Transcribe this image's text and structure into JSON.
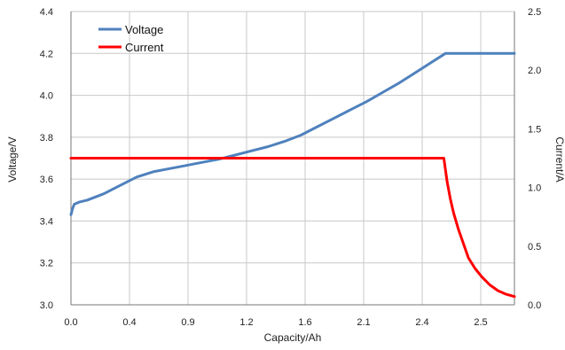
{
  "chart_data": {
    "type": "line",
    "title": "",
    "xlabel": "Capacity/Ah",
    "ylabel": "Voltage/V",
    "y2label": "Current/A",
    "xlim": [
      0.0,
      2.7
    ],
    "ylim": [
      3.0,
      4.4
    ],
    "y2lim": [
      0.0,
      2.5
    ],
    "x_ticks": [
      "0.0",
      "0.4",
      "0.9",
      "1.2",
      "1.6",
      "2.1",
      "2.4",
      "2.5"
    ],
    "y_ticks": [
      "3.0",
      "3.2",
      "3.4",
      "3.6",
      "3.8",
      "4.0",
      "4.2",
      "4.4"
    ],
    "y2_ticks": [
      "0.0",
      "0.5",
      "1.0",
      "1.5",
      "2.0",
      "2.5"
    ],
    "grid": true,
    "legend_position": "top-left",
    "series": [
      {
        "name": "Voltage",
        "axis": "left",
        "color": "#4f81bd",
        "points": [
          [
            0.0,
            3.43
          ],
          [
            0.01,
            3.46
          ],
          [
            0.02,
            3.48
          ],
          [
            0.05,
            3.49
          ],
          [
            0.1,
            3.5
          ],
          [
            0.2,
            3.53
          ],
          [
            0.3,
            3.57
          ],
          [
            0.4,
            3.61
          ],
          [
            0.5,
            3.635
          ],
          [
            0.6,
            3.65
          ],
          [
            0.7,
            3.665
          ],
          [
            0.8,
            3.68
          ],
          [
            0.9,
            3.695
          ],
          [
            1.0,
            3.715
          ],
          [
            1.1,
            3.735
          ],
          [
            1.2,
            3.755
          ],
          [
            1.3,
            3.78
          ],
          [
            1.4,
            3.81
          ],
          [
            1.5,
            3.85
          ],
          [
            1.6,
            3.89
          ],
          [
            1.7,
            3.93
          ],
          [
            1.8,
            3.97
          ],
          [
            1.9,
            4.015
          ],
          [
            2.0,
            4.06
          ],
          [
            2.1,
            4.11
          ],
          [
            2.2,
            4.16
          ],
          [
            2.25,
            4.185
          ],
          [
            2.28,
            4.2
          ],
          [
            2.7,
            4.2
          ]
        ]
      },
      {
        "name": "Current",
        "axis": "right",
        "color": "#ff0000",
        "points": [
          [
            0.0,
            1.25
          ],
          [
            2.27,
            1.25
          ],
          [
            2.29,
            1.05
          ],
          [
            2.31,
            0.9
          ],
          [
            2.33,
            0.78
          ],
          [
            2.36,
            0.64
          ],
          [
            2.39,
            0.52
          ],
          [
            2.42,
            0.4
          ],
          [
            2.46,
            0.31
          ],
          [
            2.5,
            0.24
          ],
          [
            2.55,
            0.17
          ],
          [
            2.6,
            0.12
          ],
          [
            2.65,
            0.09
          ],
          [
            2.7,
            0.07
          ]
        ]
      }
    ]
  }
}
